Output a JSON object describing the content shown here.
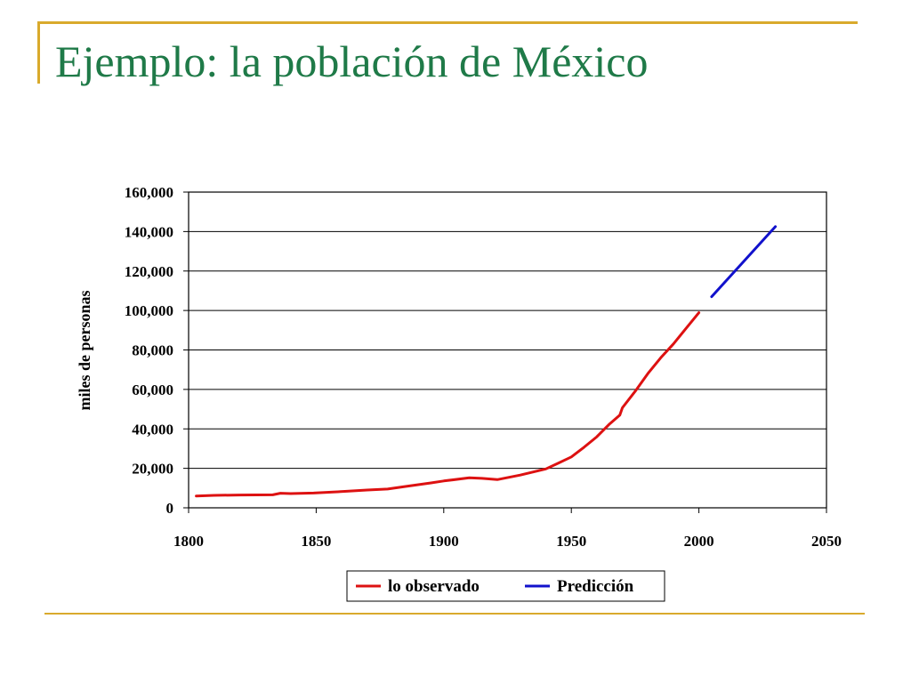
{
  "slide": {
    "title": "Ejemplo:  la población de México"
  },
  "colors": {
    "accent_rule": "#d9aa2c",
    "title": "#1f7a48",
    "observed": "#dd1111",
    "predicted": "#1111cc"
  },
  "chart_data": {
    "type": "line",
    "title": "",
    "xlabel": "",
    "ylabel": "miles de personas",
    "xlim": [
      1800,
      2050
    ],
    "ylim": [
      0,
      160000
    ],
    "grid": "horizontal",
    "legend_placement": "bottom-center",
    "x_ticks": [
      "1800",
      "1850",
      "1900",
      "1950",
      "2000",
      "2050"
    ],
    "y_ticks": [
      "0",
      "20,000",
      "40,000",
      "60,000",
      "80,000",
      "100,000",
      "120,000",
      "140,000",
      "160,000"
    ],
    "series": [
      {
        "name": "lo observado",
        "color": "#dd1111",
        "x": [
          1803,
          1810,
          1820,
          1833,
          1836,
          1840,
          1849,
          1855,
          1862,
          1870,
          1878,
          1885,
          1895,
          1900,
          1910,
          1915,
          1921,
          1930,
          1940,
          1945,
          1950,
          1955,
          1960,
          1965,
          1969,
          1970,
          1975,
          1980,
          1985,
          1990,
          1995,
          2000
        ],
        "y": [
          6000,
          6300,
          6500,
          6600,
          7400,
          7200,
          7500,
          7900,
          8400,
          9000,
          9500,
          10800,
          12600,
          13600,
          15200,
          14900,
          14300,
          16600,
          19700,
          22700,
          25800,
          30700,
          36000,
          42500,
          47000,
          50700,
          59000,
          68000,
          76000,
          83000,
          91000,
          98900
        ]
      },
      {
        "name": "Predicción",
        "color": "#1111cc",
        "x": [
          2005,
          2030
        ],
        "y": [
          107000,
          142500
        ]
      }
    ]
  }
}
